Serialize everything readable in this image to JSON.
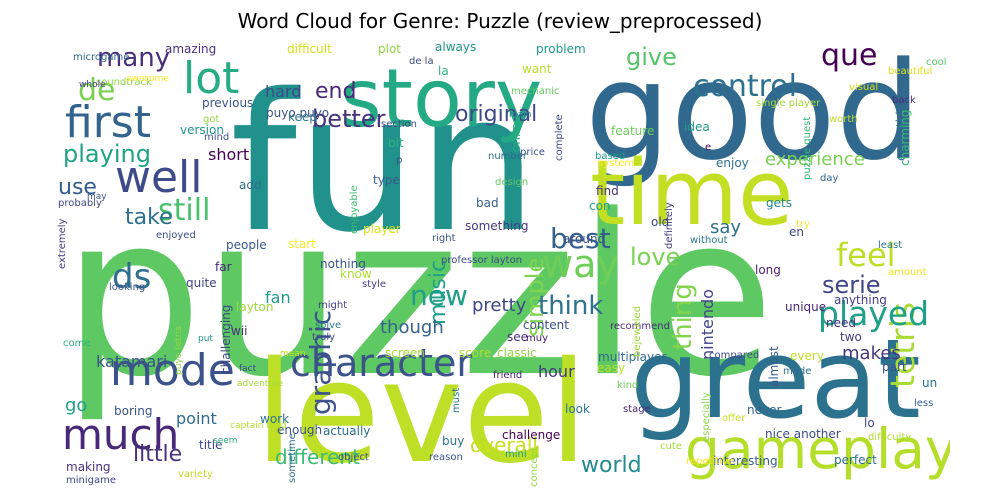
{
  "title": "Word Cloud for Genre: Puzzle (review_preprocessed)",
  "words": [
    {
      "text": "puzzle",
      "c": "#5ec962"
    },
    {
      "text": "fun",
      "c": "#21918c"
    },
    {
      "text": "good",
      "c": "#31688e"
    },
    {
      "text": "level",
      "c": "#bddf26"
    },
    {
      "text": "great",
      "c": "#2c728e"
    },
    {
      "text": "time",
      "c": "#c2df23"
    },
    {
      "text": "story",
      "c": "#23a983"
    },
    {
      "text": "gameplay",
      "c": "#b5de2b"
    },
    {
      "text": "mode",
      "c": "#3b528b"
    },
    {
      "text": "much",
      "c": "#482878"
    },
    {
      "text": "first",
      "c": "#33638d"
    },
    {
      "text": "well",
      "c": "#3e4a89"
    },
    {
      "text": "lot",
      "c": "#25ac82"
    },
    {
      "text": "character",
      "c": "#3b528b"
    },
    {
      "text": "tetris",
      "c": "#a8db34"
    },
    {
      "text": "played",
      "c": "#1fa188"
    },
    {
      "text": "way",
      "c": "#6ece58"
    },
    {
      "text": "control",
      "c": "#2d718e"
    },
    {
      "text": "still",
      "c": "#4ac16d"
    },
    {
      "text": "best",
      "c": "#355f8d"
    },
    {
      "text": "ds",
      "c": "#2e6e8e"
    },
    {
      "text": "new",
      "c": "#1f9e89"
    },
    {
      "text": "feel",
      "c": "#bddf26"
    },
    {
      "text": "que",
      "c": "#440154"
    },
    {
      "text": "de",
      "c": "#7ad151"
    },
    {
      "text": "many",
      "c": "#472f7d"
    },
    {
      "text": "playing",
      "c": "#20a486"
    },
    {
      "text": "use",
      "c": "#365c8d"
    },
    {
      "text": "take",
      "c": "#2d708e"
    },
    {
      "text": "graphic",
      "c": "#3b528b"
    },
    {
      "text": "music",
      "c": "#1fa187"
    },
    {
      "text": "simple",
      "c": "#7fd34e"
    },
    {
      "text": "thing",
      "c": "#84d44b"
    },
    {
      "text": "love",
      "c": "#7ad151"
    },
    {
      "text": "think",
      "c": "#2c738e"
    },
    {
      "text": "serie",
      "c": "#404588"
    },
    {
      "text": "better",
      "c": "#46327e"
    },
    {
      "text": "end",
      "c": "#482878"
    },
    {
      "text": "give",
      "c": "#54c568"
    },
    {
      "text": "original",
      "c": "#3e4989"
    },
    {
      "text": "experience",
      "c": "#7ad151"
    },
    {
      "text": "little",
      "c": "#46327e"
    },
    {
      "text": "different",
      "c": "#3bbb75"
    },
    {
      "text": "overall",
      "c": "#c8e020"
    },
    {
      "text": "world",
      "c": "#228b8d"
    },
    {
      "text": "pretty",
      "c": "#3f4788"
    },
    {
      "text": "hour",
      "c": "#453882"
    },
    {
      "text": "though",
      "c": "#34618d"
    },
    {
      "text": "makes",
      "c": "#453781"
    },
    {
      "text": "katamari",
      "c": "#3b528b"
    },
    {
      "text": "point",
      "c": "#2f6b8e"
    },
    {
      "text": "fan",
      "c": "#1f9a8a"
    },
    {
      "text": "short",
      "c": "#440154"
    },
    {
      "text": "say",
      "c": "#2e6f8e"
    },
    {
      "text": "hard",
      "c": "#3e4a89"
    },
    {
      "text": "nintendo",
      "c": "#414487"
    },
    {
      "text": "go",
      "c": "#1fa088"
    },
    {
      "text": "amazing",
      "c": "#46317e"
    },
    {
      "text": "difficult",
      "c": "#d2e21b"
    },
    {
      "text": "plot",
      "c": "#8fd744"
    },
    {
      "text": "always",
      "c": "#20928c"
    },
    {
      "text": "problem",
      "c": "#1f978b"
    },
    {
      "text": "want",
      "c": "#b8de29"
    },
    {
      "text": "la",
      "c": "#2db27d"
    },
    {
      "text": "puyo puyo",
      "c": "#3c4f8a"
    },
    {
      "text": "soundtrack",
      "c": "#8bd646"
    },
    {
      "text": "version",
      "c": "#1f948c"
    },
    {
      "text": "previous",
      "c": "#39558c"
    },
    {
      "text": "got",
      "c": "#95d840"
    },
    {
      "text": "keep",
      "c": "#2a788e"
    },
    {
      "text": "bit",
      "c": "#2db27d"
    },
    {
      "text": "type",
      "c": "#365d8d"
    },
    {
      "text": "add",
      "c": "#2e6e8e"
    },
    {
      "text": "online",
      "c": "#26ad81"
    },
    {
      "text": "complete",
      "c": "#3f4889"
    },
    {
      "text": "feature",
      "c": "#6ccd5a"
    },
    {
      "text": "idea",
      "c": "#1e9b8a"
    },
    {
      "text": "enjoy",
      "c": "#2c718e"
    },
    {
      "text": "system",
      "c": "#fde725"
    },
    {
      "text": "single player",
      "c": "#a2da37"
    },
    {
      "text": "puzzle quest",
      "c": "#31b57b"
    },
    {
      "text": "everything",
      "c": "#306a8e"
    },
    {
      "text": "charming",
      "c": "#3aba76"
    },
    {
      "text": "visual",
      "c": "#d0e11c"
    },
    {
      "text": "beautiful",
      "c": "#dde318"
    },
    {
      "text": "cool",
      "c": "#56c667"
    },
    {
      "text": "back",
      "c": "#472d7b"
    },
    {
      "text": "worth",
      "c": "#c0df25"
    },
    {
      "text": "day",
      "c": "#31668e"
    },
    {
      "text": "price",
      "c": "#3c508b"
    },
    {
      "text": "design",
      "c": "#60ca60"
    },
    {
      "text": "number",
      "c": "#2f6c8e"
    },
    {
      "text": "bad",
      "c": "#355e8d"
    },
    {
      "text": "something",
      "c": "#443983"
    },
    {
      "text": "player",
      "c": "#d5e21a"
    },
    {
      "text": "start",
      "c": "#fde725"
    },
    {
      "text": "people",
      "c": "#39568c"
    },
    {
      "text": "far",
      "c": "#482576"
    },
    {
      "text": "quite",
      "c": "#414487"
    },
    {
      "text": "layton",
      "c": "#9dd93b"
    },
    {
      "text": "challenging",
      "c": "#3f4788"
    },
    {
      "text": "wii",
      "c": "#472e7c"
    },
    {
      "text": "nothing",
      "c": "#3b528b"
    },
    {
      "text": "know",
      "c": "#b0dd2f"
    },
    {
      "text": "style",
      "c": "#443a83"
    },
    {
      "text": "might",
      "c": "#433e85"
    },
    {
      "text": "solve",
      "c": "#29798e"
    },
    {
      "text": "truly",
      "c": "#3e4a89"
    },
    {
      "text": "content",
      "c": "#3b518b"
    },
    {
      "text": "see",
      "c": "#46307e"
    },
    {
      "text": "screen",
      "c": "#a5db36"
    },
    {
      "text": "score",
      "c": "#b0dd2f"
    },
    {
      "text": "classic",
      "c": "#90d743"
    },
    {
      "text": "multiplayer",
      "c": "#2f6b8e"
    },
    {
      "text": "easy",
      "c": "#bddf26"
    },
    {
      "text": "muy",
      "c": "#471164"
    },
    {
      "text": "friend",
      "c": "#482173"
    },
    {
      "text": "look",
      "c": "#2b748e"
    },
    {
      "text": "challenge",
      "c": "#440154"
    },
    {
      "text": "buy",
      "c": "#2a788e"
    },
    {
      "text": "actually",
      "c": "#2e6f8e"
    },
    {
      "text": "boring",
      "c": "#3a548c"
    },
    {
      "text": "title",
      "c": "#3e4a89"
    },
    {
      "text": "making",
      "c": "#46327e"
    },
    {
      "text": "minigame",
      "c": "#404688"
    },
    {
      "text": "variety",
      "c": "#bddf26"
    },
    {
      "text": "unique",
      "c": "#482576"
    },
    {
      "text": "need",
      "c": "#46317e"
    },
    {
      "text": "two",
      "c": "#453882"
    },
    {
      "text": "part",
      "c": "#3a548c"
    },
    {
      "text": "every",
      "c": "#c0df25"
    },
    {
      "text": "almost",
      "c": "#365d8d"
    },
    {
      "text": "nice another",
      "c": "#3e4a89"
    },
    {
      "text": "never",
      "c": "#31688e"
    },
    {
      "text": "interesting",
      "c": "#355e8d"
    },
    {
      "text": "perfect",
      "c": "#2e6f8e"
    },
    {
      "text": "long",
      "c": "#481f70"
    },
    {
      "text": "anything",
      "c": "#433e85"
    },
    {
      "text": "en",
      "c": "#414487"
    },
    {
      "text": "try",
      "c": "#fde725"
    },
    {
      "text": "least",
      "c": "#2a768e"
    },
    {
      "text": "amount",
      "c": "#f1e51d"
    },
    {
      "text": "un",
      "c": "#2c728e"
    },
    {
      "text": "less",
      "c": "#365c8d"
    },
    {
      "text": "lo",
      "c": "#3f4788"
    },
    {
      "text": "difficulty",
      "c": "#addc30"
    },
    {
      "text": "cute",
      "c": "#a5db36"
    },
    {
      "text": "repetitive",
      "c": "#fde725"
    },
    {
      "text": "offer",
      "c": "#c5e021"
    },
    {
      "text": "stage",
      "c": "#482475"
    },
    {
      "text": "kind",
      "c": "#6ece58"
    },
    {
      "text": "mini",
      "c": "#1e9b8a"
    },
    {
      "text": "made",
      "c": "#2e6e8e"
    },
    {
      "text": "especially",
      "c": "#8bd646"
    },
    {
      "text": "compared",
      "c": "#3e4a89"
    },
    {
      "text": "recommend",
      "c": "#472c7a"
    },
    {
      "text": "must",
      "c": "#2a778e"
    },
    {
      "text": "based",
      "c": "#1e9c89"
    },
    {
      "text": "around",
      "c": "#3b518b"
    },
    {
      "text": "find",
      "c": "#46307e"
    },
    {
      "text": "con",
      "c": "#1f9e89"
    },
    {
      "text": "old",
      "c": "#3e4989"
    },
    {
      "text": "gets",
      "c": "#23888e"
    },
    {
      "text": "without",
      "c": "#2a788e"
    },
    {
      "text": "professor layton",
      "c": "#3f4889"
    },
    {
      "text": "right",
      "c": "#3a548c"
    },
    {
      "text": "bejeweled",
      "c": "#a0da39"
    },
    {
      "text": "definitely",
      "c": "#433d84"
    },
    {
      "text": "section",
      "c": "#3f4788"
    },
    {
      "text": "main",
      "c": "#26828e"
    },
    {
      "text": "mechanic",
      "c": "#65cb5e"
    },
    {
      "text": "e",
      "c": "#440154"
    },
    {
      "text": "mind",
      "c": "#3b528b"
    },
    {
      "text": "enjoyable",
      "c": "#3dbc74"
    },
    {
      "text": "enjoyed",
      "c": "#3d4d8a"
    },
    {
      "text": "probably",
      "c": "#3f4889"
    },
    {
      "text": "may",
      "c": "#3b528b"
    },
    {
      "text": "extremely",
      "c": "#433e85"
    },
    {
      "text": "looking",
      "c": "#3b528b"
    },
    {
      "text": "come",
      "c": "#2db27d"
    },
    {
      "text": "puyo tetris",
      "c": "#8fd744"
    },
    {
      "text": "put",
      "c": "#1f968b"
    },
    {
      "text": "mean",
      "c": "#c8e020"
    },
    {
      "text": "work",
      "c": "#2c728e"
    },
    {
      "text": "enough",
      "c": "#3b528b"
    },
    {
      "text": "fact",
      "c": "#3e4a89"
    },
    {
      "text": "adventure",
      "c": "#a5db36"
    },
    {
      "text": "captain toad",
      "c": "#b5de2b"
    },
    {
      "text": "sometime",
      "c": "#2e6e8e"
    },
    {
      "text": "seem",
      "c": "#2db27d"
    },
    {
      "text": "object",
      "c": "#3b528b"
    },
    {
      "text": "reason",
      "c": "#39558c"
    },
    {
      "text": "concept",
      "c": "#95d840"
    },
    {
      "text": "de la",
      "c": "#3e4a89"
    },
    {
      "text": "microgame",
      "c": "#31688e"
    },
    {
      "text": "whole",
      "c": "#443983"
    },
    {
      "text": "awesome",
      "c": "#fde725"
    },
    {
      "text": "p",
      "c": "#3b528b"
    }
  ]
}
